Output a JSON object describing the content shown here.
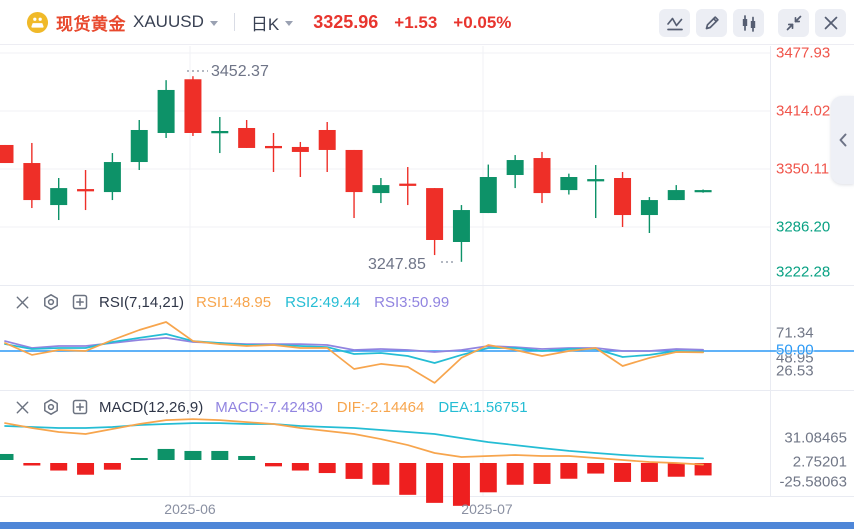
{
  "header": {
    "instrument": "现货黄金",
    "symbol": "XAUUSD",
    "timeframe": "日K",
    "price": "3325.96",
    "change": "+1.53",
    "change_pct": "+0.05%"
  },
  "toolbar": {
    "buttons": [
      "indicator",
      "draw",
      "candle-style",
      "collapse",
      "close"
    ]
  },
  "colors": {
    "quote_up": "#e8352e",
    "candle_up": "#0d9268",
    "candle_down": "#ee2f28",
    "axis_red": "#f0544a",
    "axis_green": "#09a183",
    "rsi1": "#f7a54d",
    "rsi2": "#25bdd4",
    "rsi3": "#9184e0",
    "ref_blue": "#2b99f5",
    "dif": "#f7a54d",
    "dea": "#25bdd4",
    "macd_value": "#9184e0",
    "hist_up": "#0d9268",
    "hist_down": "#ee1f1f",
    "grid": "#f1f2f6",
    "divider": "#e9ebf2",
    "dots": "#9aa0ae"
  },
  "main_chart": {
    "high_annotation": "3452.37",
    "low_annotation": "3247.85",
    "price_axis": [
      {
        "text": "3477.93",
        "tone": "red"
      },
      {
        "text": "3414.02",
        "tone": "red"
      },
      {
        "text": "3350.11",
        "tone": "red"
      },
      {
        "text": "3286.20",
        "tone": "green"
      },
      {
        "text": "3222.28",
        "tone": "green"
      }
    ],
    "x_axis": [
      "2025-06",
      "2025-07"
    ],
    "candles": [
      {
        "d": "down",
        "h": 3376.6,
        "bt": 3376.6,
        "bb": 3356.7,
        "l": 3356.7
      },
      {
        "d": "down",
        "h": 3378.8,
        "bt": 3356.7,
        "bb": 3315.9,
        "l": 3307.1
      },
      {
        "d": "up",
        "h": 3340.2,
        "bt": 3329.1,
        "bb": 3310.4,
        "l": 3293.9
      },
      {
        "d": "down",
        "h": 3349.0,
        "bt": 3328.0,
        "bb": 3325.5,
        "l": 3304.9
      },
      {
        "d": "up",
        "h": 3367.7,
        "bt": 3357.8,
        "bb": 3324.7,
        "l": 3315.9
      },
      {
        "d": "up",
        "h": 3404.1,
        "bt": 3393.1,
        "bb": 3357.8,
        "l": 3349.0
      },
      {
        "d": "up",
        "h": 3448.0,
        "bt": 3437.2,
        "bb": 3389.8,
        "l": 3384.3
      },
      {
        "d": "down",
        "h": 3452.37,
        "bt": 3449.0,
        "bb": 3389.8,
        "l": 3386.5
      },
      {
        "d": "up",
        "h": 3407.4,
        "bt": 3392.0,
        "bb": 3389.5,
        "l": 3367.7
      },
      {
        "d": "down",
        "h": 3404.1,
        "bt": 3395.3,
        "bb": 3373.3,
        "l": 3373.3
      },
      {
        "d": "down",
        "h": 3389.8,
        "bt": 3375.5,
        "bb": 3373.0,
        "l": 3346.8
      },
      {
        "d": "down",
        "h": 3379.9,
        "bt": 3374.4,
        "bb": 3368.9,
        "l": 3341.3
      },
      {
        "d": "down",
        "h": 3401.9,
        "bt": 3393.1,
        "bb": 3371.1,
        "l": 3346.8
      },
      {
        "d": "down",
        "h": 3371.1,
        "bt": 3371.1,
        "bb": 3324.7,
        "l": 3296.1
      },
      {
        "d": "up",
        "h": 3340.2,
        "bt": 3332.4,
        "bb": 3323.6,
        "l": 3312.6
      },
      {
        "d": "down",
        "h": 3352.3,
        "bt": 3334.0,
        "bb": 3331.5,
        "l": 3310.4
      },
      {
        "d": "down",
        "h": 3329.1,
        "bt": 3329.1,
        "bb": 3271.9,
        "l": 3255.3
      },
      {
        "d": "up",
        "h": 3310.4,
        "bt": 3304.9,
        "bb": 3269.7,
        "l": 3247.85
      },
      {
        "d": "up",
        "h": 3355.0,
        "bt": 3341.3,
        "bb": 3301.6,
        "l": 3301.6
      },
      {
        "d": "up",
        "h": 3365.5,
        "bt": 3360.0,
        "bb": 3343.5,
        "l": 3329.1
      },
      {
        "d": "down",
        "h": 3368.9,
        "bt": 3362.2,
        "bb": 3323.6,
        "l": 3312.6
      },
      {
        "d": "up",
        "h": 3345.0,
        "bt": 3341.3,
        "bb": 3326.9,
        "l": 3322.0
      },
      {
        "d": "up",
        "h": 3354.5,
        "bt": 3339.0,
        "bb": 3336.5,
        "l": 3296.1
      },
      {
        "d": "down",
        "h": 3346.8,
        "bt": 3340.2,
        "bb": 3299.4,
        "l": 3286.2
      },
      {
        "d": "up",
        "h": 3319.2,
        "bt": 3315.9,
        "bb": 3299.4,
        "l": 3279.6
      },
      {
        "d": "up",
        "h": 3332.4,
        "bt": 3326.9,
        "bb": 3315.9,
        "l": 3315.9
      },
      {
        "d": "up",
        "h": 3327.5,
        "bt": 3326.9,
        "bb": 3324.5,
        "l": 3324.0
      }
    ]
  },
  "rsi": {
    "title": "RSI(7,14,21)",
    "legend": [
      {
        "text": "RSI1:48.95",
        "color": "rsi1"
      },
      {
        "text": "RSI2:49.44",
        "color": "rsi2"
      },
      {
        "text": "RSI3:50.99",
        "color": "rsi3"
      }
    ],
    "labels": {
      "max": "71.34",
      "ref": "50.00",
      "current": "48.95",
      "min": "26.53"
    },
    "ref_value": 50,
    "series": {
      "rsi1": [
        55.9,
        47.1,
        50.7,
        50.0,
        58.1,
        65.4,
        71.34,
        57.3,
        55.1,
        53.7,
        54.4,
        52.2,
        52.2,
        36.8,
        40.5,
        38.3,
        26.53,
        44.9,
        54.4,
        50.7,
        46.3,
        50.0,
        52.2,
        39.0,
        44.9,
        49.3,
        48.95
      ],
      "rsi2": [
        55.1,
        51.5,
        52.2,
        52.2,
        56.6,
        59.6,
        62.5,
        57.3,
        55.9,
        54.4,
        54.4,
        53.7,
        52.9,
        47.8,
        48.5,
        46.3,
        41.2,
        47.1,
        52.2,
        52.2,
        50.0,
        51.5,
        51.5,
        45.6,
        47.1,
        50.0,
        49.44
      ],
      "rsi3": [
        57.3,
        52.2,
        53.7,
        53.7,
        55.9,
        58.1,
        59.6,
        56.6,
        55.9,
        55.1,
        55.1,
        55.1,
        54.4,
        50.7,
        51.5,
        50.7,
        49.3,
        50.7,
        53.7,
        52.9,
        51.5,
        52.2,
        52.2,
        50.0,
        50.0,
        51.5,
        50.99
      ]
    }
  },
  "macd": {
    "title": "MACD(12,26,9)",
    "legend": [
      {
        "text": "MACD:-7.42430",
        "color": "macd_value"
      },
      {
        "text": "DIF:-2.14464",
        "color": "dif"
      },
      {
        "text": "DEA:1.56751",
        "color": "dea"
      }
    ],
    "labels": [
      "31.08465",
      "2.75201",
      "-25.58063"
    ],
    "dif": [
      22.6,
      19.7,
      17.3,
      16.1,
      19.1,
      22.1,
      24.4,
      25.0,
      24.4,
      23.2,
      22.1,
      19.7,
      17.9,
      16.1,
      13.1,
      9.5,
      4.8,
      2.4,
      3.0,
      3.6,
      3.0,
      3.0,
      1.8,
      0.6,
      -0.6,
      -1.2,
      -2.14
    ],
    "dea": [
      20.9,
      20.3,
      19.7,
      19.7,
      20.3,
      21.5,
      22.1,
      22.6,
      22.6,
      22.1,
      22.1,
      20.9,
      20.3,
      19.7,
      18.5,
      17.3,
      16.1,
      13.7,
      11.3,
      9.5,
      7.7,
      6.0,
      4.8,
      3.6,
      2.7,
      2.1,
      1.57
    ],
    "hist": [
      3.6,
      -1.5,
      -4.5,
      -7.0,
      -4.0,
      1.0,
      6.6,
      5.4,
      5.4,
      2.4,
      -2.0,
      -4.5,
      -6.0,
      -9.5,
      -13.0,
      -19.0,
      -23.8,
      -25.58,
      -17.5,
      -13.0,
      -12.5,
      -9.4,
      -6.3,
      -11.3,
      -11.3,
      -8.2,
      -7.42
    ]
  }
}
